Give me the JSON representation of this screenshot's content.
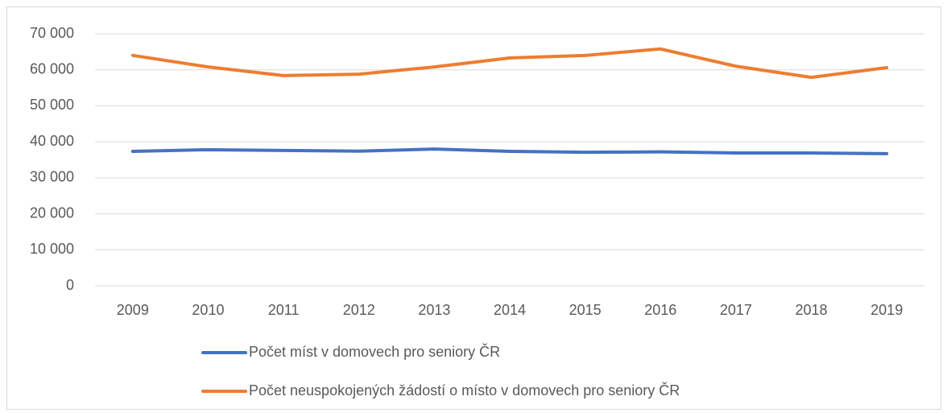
{
  "chart_data": {
    "type": "line",
    "categories": [
      "2009",
      "2010",
      "2011",
      "2012",
      "2013",
      "2014",
      "2015",
      "2016",
      "2017",
      "2018",
      "2019"
    ],
    "series": [
      {
        "name": "Počet míst v domovech pro seniory ČR",
        "color": "#4472c4",
        "values": [
          37350,
          37800,
          37600,
          37400,
          38000,
          37350,
          37100,
          37200,
          36900,
          36900,
          36700
        ]
      },
      {
        "name": "Počet neuspokojených žádostí o místo v domovech pro seniory ČR",
        "color": "#ed7d31",
        "values": [
          64000,
          60800,
          58400,
          58800,
          60800,
          63300,
          64000,
          65800,
          61000,
          57900,
          60600
        ]
      }
    ],
    "ylim": [
      0,
      70000
    ],
    "yticks": [
      0,
      {
        "value": 10000,
        "label": "10 000"
      },
      {
        "value": 20000,
        "label": "20 000"
      },
      {
        "value": 30000,
        "label": "30 000"
      },
      {
        "value": 40000,
        "label": "40 000"
      },
      {
        "value": 50000,
        "label": "50 000"
      },
      {
        "value": 60000,
        "label": "60 000"
      },
      {
        "value": 70000,
        "label": "70 000"
      }
    ],
    "grid": true
  }
}
